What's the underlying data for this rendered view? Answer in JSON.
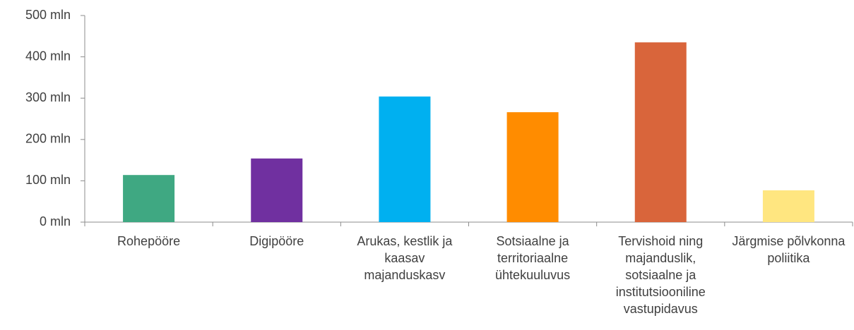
{
  "chart_data": {
    "type": "bar",
    "categories": [
      "Rohepööre",
      "Digipööre",
      "Arukas, kestlik ja kaasav majanduskasv",
      "Sotsiaalne ja territoriaalne ühtekuuluvus",
      "Tervishoid ning majanduslik, sotsiaalne ja institutsiooniline vastupidavus",
      "Järgmise põlvkonna poliitika"
    ],
    "values": [
      114,
      154,
      304,
      266,
      435,
      77
    ],
    "colors": [
      "#3fa882",
      "#7030a0",
      "#00b0f0",
      "#ff8c00",
      "#d9653b",
      "#ffe680"
    ],
    "ylim": [
      0,
      500
    ],
    "yticks": [
      {
        "value": 0,
        "label": "0 mln"
      },
      {
        "value": 100,
        "label": "100 mln"
      },
      {
        "value": 200,
        "label": "200 mln"
      },
      {
        "value": 300,
        "label": "300 mln"
      },
      {
        "value": 400,
        "label": "400 mln"
      },
      {
        "value": 500,
        "label": "500 mln"
      }
    ],
    "grid": false
  }
}
